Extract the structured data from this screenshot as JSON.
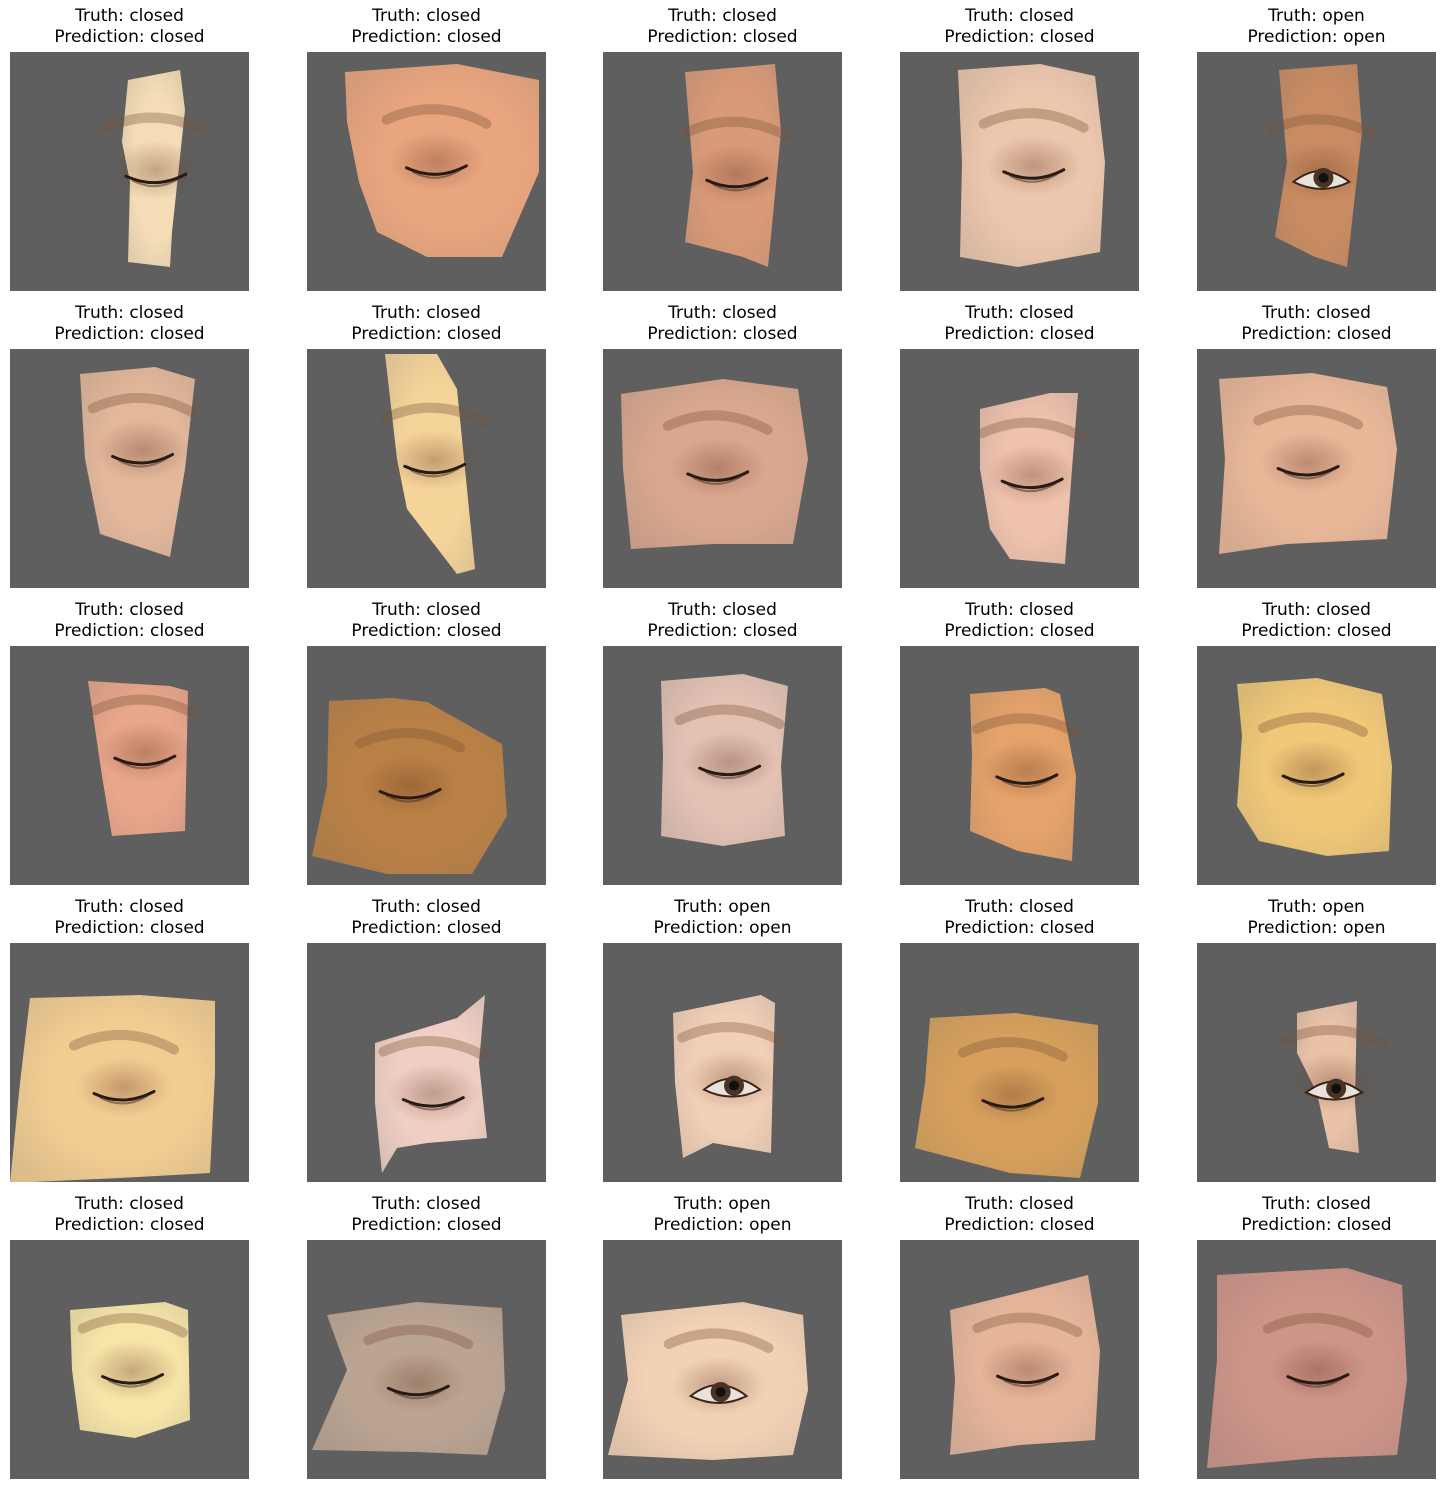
{
  "figure": {
    "panels": [
      {
        "truth": "Truth: closed",
        "prediction": "Prediction: closed",
        "skin": "#f4ddb6",
        "state": "closed"
      },
      {
        "truth": "Truth: closed",
        "prediction": "Prediction: closed",
        "skin": "#e9a57e",
        "state": "closed"
      },
      {
        "truth": "Truth: closed",
        "prediction": "Prediction: closed",
        "skin": "#d99a78",
        "state": "closed"
      },
      {
        "truth": "Truth: closed",
        "prediction": "Prediction: closed",
        "skin": "#ecc7ad",
        "state": "closed"
      },
      {
        "truth": "Truth: open",
        "prediction": "Prediction: open",
        "skin": "#c98c62",
        "state": "open"
      },
      {
        "truth": "Truth: closed",
        "prediction": "Prediction: closed",
        "skin": "#e2b79a",
        "state": "closed"
      },
      {
        "truth": "Truth: closed",
        "prediction": "Prediction: closed",
        "skin": "#f5d49a",
        "state": "closed"
      },
      {
        "truth": "Truth: closed",
        "prediction": "Prediction: closed",
        "skin": "#d9a78e",
        "state": "closed"
      },
      {
        "truth": "Truth: closed",
        "prediction": "Prediction: closed",
        "skin": "#eec2ad",
        "state": "closed"
      },
      {
        "truth": "Truth: closed",
        "prediction": "Prediction: closed",
        "skin": "#e8b798",
        "state": "closed"
      },
      {
        "truth": "Truth: closed",
        "prediction": "Prediction: closed",
        "skin": "#e8a68a",
        "state": "closed"
      },
      {
        "truth": "Truth: closed",
        "prediction": "Prediction: closed",
        "skin": "#b98045",
        "state": "closed"
      },
      {
        "truth": "Truth: closed",
        "prediction": "Prediction: closed",
        "skin": "#e3c2b4",
        "state": "closed"
      },
      {
        "truth": "Truth: closed",
        "prediction": "Prediction: closed",
        "skin": "#e5a26a",
        "state": "closed"
      },
      {
        "truth": "Truth: closed",
        "prediction": "Prediction: closed",
        "skin": "#f0c878",
        "state": "closed"
      },
      {
        "truth": "Truth: closed",
        "prediction": "Prediction: closed",
        "skin": "#f2cd92",
        "state": "closed"
      },
      {
        "truth": "Truth: closed",
        "prediction": "Prediction: closed",
        "skin": "#efcfc4",
        "state": "closed"
      },
      {
        "truth": "Truth: open",
        "prediction": "Prediction: open",
        "skin": "#f2d0b8",
        "state": "open"
      },
      {
        "truth": "Truth: closed",
        "prediction": "Prediction: closed",
        "skin": "#d6a05c",
        "state": "closed"
      },
      {
        "truth": "Truth: open",
        "prediction": "Prediction: open",
        "skin": "#e9c2a8",
        "state": "open"
      },
      {
        "truth": "Truth: closed",
        "prediction": "Prediction: closed",
        "skin": "#f7e5a8",
        "state": "closed"
      },
      {
        "truth": "Truth: closed",
        "prediction": "Prediction: closed",
        "skin": "#bba492",
        "state": "closed"
      },
      {
        "truth": "Truth: open",
        "prediction": "Prediction: open",
        "skin": "#f2d2b5",
        "state": "open"
      },
      {
        "truth": "Truth: closed",
        "prediction": "Prediction: closed",
        "skin": "#e5b59a",
        "state": "closed"
      },
      {
        "truth": "Truth: closed",
        "prediction": "Prediction: closed",
        "skin": "#cd9488",
        "state": "closed"
      }
    ]
  }
}
